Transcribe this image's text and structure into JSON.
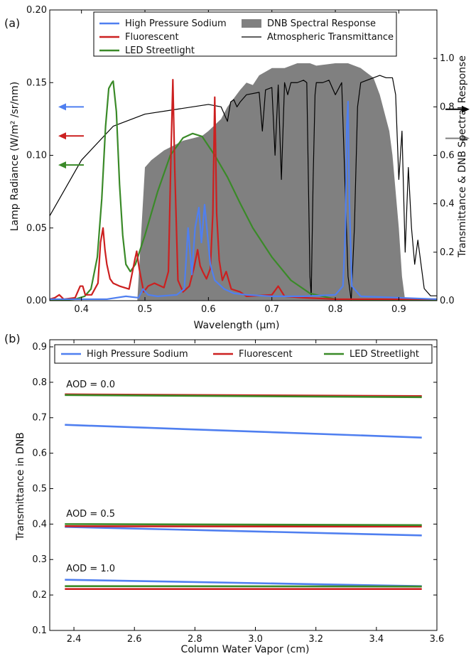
{
  "chart_data": [
    {
      "panel_label": "(a)",
      "type": "line",
      "xlabel": "Wavelength (μm)",
      "ylabel": "Lamp Radiance (W/m² /sr/nm)",
      "y2label": "Transmittance & DNB Spectral Response",
      "xlim": [
        0.35,
        0.96
      ],
      "ylim": [
        0,
        0.2
      ],
      "y2lim": [
        0,
        1.2
      ],
      "xticks": [
        "0.4",
        "0.5",
        "0.6",
        "0.7",
        "0.8",
        "0.9"
      ],
      "yticks": [
        "0.00",
        "0.05",
        "0.10",
        "0.15",
        "0.20"
      ],
      "y2ticks": [
        "0.0",
        "0.2",
        "0.4",
        "0.6",
        "0.8",
        "1.0"
      ],
      "legend_position": "top-center",
      "colors": {
        "hps": "#4f7ff0",
        "fluor": "#cc2020",
        "led": "#3a8a28",
        "dnb": "#808080",
        "atm": "#000000"
      },
      "series": [
        {
          "key": "hps",
          "name": "High Pressure Sodium",
          "axis": "left",
          "x": [
            0.35,
            0.44,
            0.47,
            0.49,
            0.497,
            0.505,
            0.52,
            0.55,
            0.562,
            0.568,
            0.574,
            0.579,
            0.585,
            0.589,
            0.594,
            0.598,
            0.603,
            0.61,
            0.625,
            0.64,
            0.66,
            0.7,
            0.75,
            0.8,
            0.812,
            0.816,
            0.818,
            0.82,
            0.822,
            0.826,
            0.84,
            0.96
          ],
          "y": [
            0.001,
            0.001,
            0.003,
            0.002,
            0.008,
            0.004,
            0.003,
            0.004,
            0.008,
            0.05,
            0.018,
            0.05,
            0.064,
            0.04,
            0.066,
            0.048,
            0.025,
            0.014,
            0.008,
            0.005,
            0.004,
            0.003,
            0.003,
            0.004,
            0.01,
            0.05,
            0.12,
            0.137,
            0.07,
            0.01,
            0.003,
            0.001
          ]
        },
        {
          "key": "fluor",
          "name": "Fluorescent",
          "axis": "left",
          "x": [
            0.35,
            0.358,
            0.365,
            0.372,
            0.39,
            0.398,
            0.402,
            0.406,
            0.416,
            0.426,
            0.43,
            0.434,
            0.437,
            0.44,
            0.445,
            0.45,
            0.46,
            0.475,
            0.484,
            0.487,
            0.491,
            0.498,
            0.505,
            0.515,
            0.53,
            0.537,
            0.541,
            0.544,
            0.547,
            0.552,
            0.56,
            0.57,
            0.577,
            0.583,
            0.587,
            0.591,
            0.597,
            0.603,
            0.607,
            0.61,
            0.613,
            0.617,
            0.622,
            0.628,
            0.636,
            0.65,
            0.66,
            0.7,
            0.71,
            0.72,
            0.75,
            0.8,
            0.96
          ],
          "y": [
            0.001,
            0.002,
            0.004,
            0.001,
            0.002,
            0.01,
            0.01,
            0.004,
            0.004,
            0.012,
            0.04,
            0.05,
            0.035,
            0.025,
            0.015,
            0.012,
            0.01,
            0.008,
            0.028,
            0.034,
            0.022,
            0.006,
            0.01,
            0.012,
            0.009,
            0.02,
            0.1,
            0.152,
            0.09,
            0.014,
            0.006,
            0.01,
            0.022,
            0.035,
            0.024,
            0.02,
            0.015,
            0.022,
            0.06,
            0.14,
            0.06,
            0.028,
            0.014,
            0.02,
            0.008,
            0.006,
            0.003,
            0.004,
            0.01,
            0.003,
            0.002,
            0.001,
            0.001
          ]
        },
        {
          "key": "led",
          "name": "LED Streetlight",
          "axis": "left",
          "x": [
            0.35,
            0.39,
            0.405,
            0.415,
            0.425,
            0.432,
            0.438,
            0.443,
            0.448,
            0.45,
            0.455,
            0.46,
            0.465,
            0.47,
            0.477,
            0.485,
            0.5,
            0.52,
            0.54,
            0.56,
            0.575,
            0.59,
            0.61,
            0.63,
            0.65,
            0.67,
            0.7,
            0.73,
            0.76,
            0.8,
            0.96
          ],
          "y": [
            0.0,
            0.001,
            0.003,
            0.008,
            0.03,
            0.07,
            0.12,
            0.146,
            0.15,
            0.151,
            0.13,
            0.08,
            0.045,
            0.025,
            0.02,
            0.025,
            0.045,
            0.075,
            0.1,
            0.112,
            0.115,
            0.113,
            0.1,
            0.085,
            0.067,
            0.05,
            0.03,
            0.014,
            0.005,
            0.001,
            0.0
          ]
        },
        {
          "key": "atm",
          "name": "Atmospheric Transmittance",
          "axis": "right",
          "x": [
            0.35,
            0.4,
            0.45,
            0.5,
            0.55,
            0.6,
            0.62,
            0.63,
            0.635,
            0.64,
            0.645,
            0.65,
            0.66,
            0.68,
            0.685,
            0.69,
            0.7,
            0.705,
            0.71,
            0.715,
            0.72,
            0.725,
            0.73,
            0.74,
            0.75,
            0.755,
            0.76,
            0.762,
            0.765,
            0.768,
            0.77,
            0.78,
            0.79,
            0.8,
            0.81,
            0.815,
            0.82,
            0.825,
            0.83,
            0.835,
            0.84,
            0.85,
            0.86,
            0.87,
            0.88,
            0.89,
            0.895,
            0.9,
            0.905,
            0.91,
            0.915,
            0.92,
            0.925,
            0.93,
            0.94,
            0.95,
            0.96
          ],
          "y": [
            0.35,
            0.58,
            0.72,
            0.77,
            0.79,
            0.81,
            0.8,
            0.74,
            0.82,
            0.83,
            0.8,
            0.82,
            0.85,
            0.86,
            0.7,
            0.87,
            0.88,
            0.6,
            0.89,
            0.5,
            0.9,
            0.85,
            0.9,
            0.9,
            0.91,
            0.9,
            0.1,
            0.02,
            0.5,
            0.85,
            0.9,
            0.9,
            0.91,
            0.85,
            0.9,
            0.5,
            0.1,
            0.0,
            0.3,
            0.8,
            0.9,
            0.91,
            0.92,
            0.93,
            0.92,
            0.92,
            0.85,
            0.5,
            0.7,
            0.2,
            0.55,
            0.3,
            0.15,
            0.25,
            0.05,
            0.02,
            0.02
          ]
        },
        {
          "key": "dnb",
          "name": "DNB Spectral Response",
          "axis": "right",
          "kind": "area",
          "x": [
            0.488,
            0.5,
            0.51,
            0.52,
            0.53,
            0.56,
            0.59,
            0.6,
            0.62,
            0.63,
            0.65,
            0.66,
            0.67,
            0.68,
            0.7,
            0.72,
            0.74,
            0.76,
            0.77,
            0.8,
            0.82,
            0.84,
            0.86,
            0.87,
            0.88,
            0.885,
            0.89,
            0.9,
            0.905,
            0.91
          ],
          "y": [
            0.0,
            0.55,
            0.58,
            0.6,
            0.62,
            0.66,
            0.68,
            0.7,
            0.75,
            0.8,
            0.87,
            0.9,
            0.89,
            0.93,
            0.96,
            0.96,
            0.98,
            0.98,
            0.97,
            0.98,
            0.98,
            0.96,
            0.92,
            0.85,
            0.75,
            0.7,
            0.6,
            0.3,
            0.1,
            0.0
          ]
        }
      ],
      "arrows": [
        {
          "side": "left",
          "color_key": "hps",
          "y": 0.8,
          "axis": "right"
        },
        {
          "side": "left",
          "color_key": "fluor",
          "y": 0.68,
          "axis": "right"
        },
        {
          "side": "left",
          "color_key": "led",
          "y": 0.56,
          "axis": "right"
        },
        {
          "side": "right",
          "color_key": "atm",
          "y": 0.79,
          "axis": "right"
        },
        {
          "side": "right",
          "color_key": "dnb",
          "y": 0.67,
          "axis": "right"
        }
      ]
    },
    {
      "panel_label": "(b)",
      "type": "line",
      "xlabel": "Column Water Vapor (cm)",
      "ylabel": "Transmittance in DNB",
      "xlim": [
        2.32,
        3.6
      ],
      "ylim": [
        0.1,
        0.92
      ],
      "xticks": [
        "2.4",
        "2.6",
        "2.8",
        "3.0",
        "3.2",
        "3.4",
        "3.6"
      ],
      "yticks": [
        "0.1",
        "0.2",
        "0.3",
        "0.4",
        "0.5",
        "0.6",
        "0.7",
        "0.8",
        "0.9"
      ],
      "legend_position": "top",
      "annotations": [
        {
          "text": "AOD = 0.0",
          "x": 2.37,
          "y": 0.77
        },
        {
          "text": "AOD = 0.5",
          "x": 2.37,
          "y": 0.405
        },
        {
          "text": "AOD = 1.0",
          "x": 2.37,
          "y": 0.25
        }
      ],
      "series": [
        {
          "key": "hps",
          "name": "High Pressure Sodium",
          "group": "AOD = 0.0",
          "x": [
            2.37,
            3.55
          ],
          "y": [
            0.68,
            0.644
          ]
        },
        {
          "key": "fluor",
          "name": "Fluorescent",
          "group": "AOD = 0.0",
          "x": [
            2.37,
            3.55
          ],
          "y": [
            0.766,
            0.761
          ]
        },
        {
          "key": "led",
          "name": "LED Streetlight",
          "group": "AOD = 0.0",
          "x": [
            2.37,
            3.55
          ],
          "y": [
            0.764,
            0.758
          ]
        },
        {
          "key": "hps",
          "name": "High Pressure Sodium",
          "group": "AOD = 0.5",
          "x": [
            2.37,
            3.55
          ],
          "y": [
            0.392,
            0.368
          ]
        },
        {
          "key": "fluor",
          "name": "Fluorescent",
          "group": "AOD = 0.5",
          "x": [
            2.37,
            3.55
          ],
          "y": [
            0.394,
            0.393
          ]
        },
        {
          "key": "led",
          "name": "LED Streetlight",
          "group": "AOD = 0.5",
          "x": [
            2.37,
            3.55
          ],
          "y": [
            0.4,
            0.397
          ]
        },
        {
          "key": "hps",
          "name": "High Pressure Sodium",
          "group": "AOD = 1.0",
          "x": [
            2.37,
            3.55
          ],
          "y": [
            0.243,
            0.225
          ]
        },
        {
          "key": "fluor",
          "name": "Fluorescent",
          "group": "AOD = 1.0",
          "x": [
            2.37,
            3.55
          ],
          "y": [
            0.217,
            0.217
          ]
        },
        {
          "key": "led",
          "name": "LED Streetlight",
          "group": "AOD = 1.0",
          "x": [
            2.37,
            3.55
          ],
          "y": [
            0.225,
            0.224
          ]
        }
      ]
    }
  ]
}
